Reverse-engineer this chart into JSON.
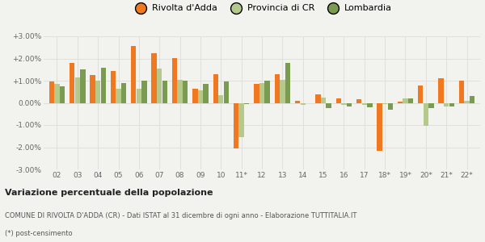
{
  "years": [
    "02",
    "03",
    "04",
    "05",
    "06",
    "07",
    "08",
    "09",
    "10",
    "11*",
    "12",
    "13",
    "14",
    "15",
    "16",
    "17",
    "18*",
    "19*",
    "20*",
    "21*",
    "22*"
  ],
  "rivolta": [
    0.95,
    1.8,
    1.25,
    1.45,
    2.55,
    2.25,
    2.02,
    0.65,
    1.3,
    -2.05,
    0.85,
    1.3,
    0.1,
    0.4,
    0.2,
    0.15,
    -2.15,
    0.05,
    0.8,
    1.1,
    1.0
  ],
  "provincia": [
    0.85,
    1.15,
    1.0,
    0.65,
    0.65,
    1.55,
    1.05,
    0.55,
    0.35,
    -1.55,
    0.9,
    1.05,
    -0.1,
    0.25,
    -0.1,
    -0.1,
    -0.05,
    0.2,
    -1.05,
    -0.15,
    0.1
  ],
  "lombardia": [
    0.75,
    1.5,
    1.6,
    0.9,
    1.0,
    1.0,
    1.0,
    0.85,
    0.95,
    -0.05,
    1.0,
    1.8,
    0.0,
    -0.25,
    -0.15,
    -0.2,
    -0.3,
    0.2,
    -0.25,
    -0.15,
    0.3
  ],
  "color_rivolta": "#f07820",
  "color_provincia": "#b5c98a",
  "color_lombardia": "#7a9c50",
  "ylim_min": -3.0,
  "ylim_max": 3.0,
  "yticks": [
    -3.0,
    -2.0,
    -1.0,
    0.0,
    1.0,
    2.0,
    3.0
  ],
  "ytick_labels": [
    "-3.00%",
    "-2.00%",
    "-1.00%",
    "0.00%",
    "+1.00%",
    "+2.00%",
    "+3.00%"
  ],
  "title": "Variazione percentuale della popolazione",
  "subtitle": "COMUNE DI RIVOLTA D'ADDA (CR) - Dati ISTAT al 31 dicembre di ogni anno - Elaborazione TUTTITALIA.IT",
  "footnote": "(*) post-censimento",
  "legend_labels": [
    "Rivolta d'Adda",
    "Provincia di CR",
    "Lombardia"
  ],
  "bg_color": "#f2f2ee",
  "grid_color": "#e0e0da"
}
